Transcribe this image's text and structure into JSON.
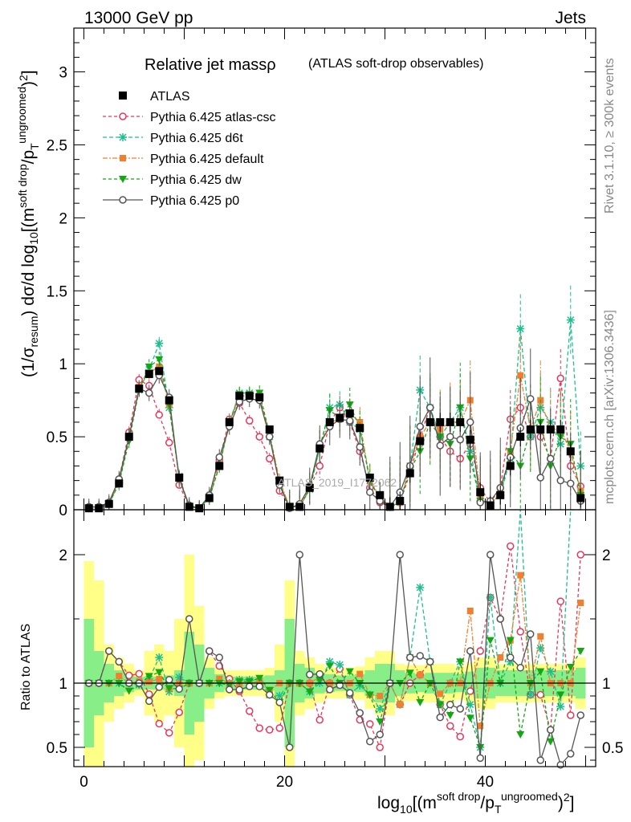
{
  "header": {
    "left": "13000 GeV pp",
    "right": "Jets"
  },
  "side_labels": {
    "rivet": "Rivet 3.1.10, ≥ 300k events",
    "mcplots": "mcplots.cern.ch [arXiv:1306.3436]"
  },
  "watermark": "ATLAS_2019_I1772062",
  "chart_data": {
    "type": "line",
    "title_main": "Relative jet massρ",
    "title_sub": "(ATLAS soft-drop observables)",
    "ylabel_top": "(1/σresum) dσ/d log10[(msoft drop/pTungroomed)2]",
    "ylabel_bottom": "Ratio to ATLAS",
    "xlabel": "log10[(msoft drop/pTungroomed)2]",
    "xlim": [
      -1,
      51
    ],
    "ylim_top": [
      0,
      3.3
    ],
    "ylim_ratio": [
      0.35,
      2.35
    ],
    "x_ticks": [
      "0",
      "20",
      "40"
    ],
    "y_ticks_top": [
      "0",
      "0.5",
      "1",
      "1.5",
      "2",
      "2.5",
      "3"
    ],
    "y_ticks_ratio": [
      "0.5",
      "1",
      "2"
    ],
    "x": [
      0.5,
      1.5,
      2.5,
      3.5,
      4.5,
      5.5,
      6.5,
      7.5,
      8.5,
      9.5,
      10.5,
      11.5,
      12.5,
      13.5,
      14.5,
      15.5,
      16.5,
      17.5,
      18.5,
      19.5,
      20.5,
      21.5,
      22.5,
      23.5,
      24.5,
      25.5,
      26.5,
      27.5,
      28.5,
      29.5,
      30.5,
      31.5,
      32.5,
      33.5,
      34.5,
      35.5,
      36.5,
      37.5,
      38.5,
      39.5,
      40.5,
      41.5,
      42.5,
      43.5,
      44.5,
      45.5,
      46.5,
      47.5,
      48.5,
      49.5
    ],
    "series": [
      {
        "name": "ATLAS",
        "color": "#000000",
        "marker": "square",
        "values": [
          0.01,
          0.01,
          0.04,
          0.18,
          0.5,
          0.83,
          0.93,
          0.95,
          0.75,
          0.22,
          0.02,
          0.01,
          0.08,
          0.3,
          0.6,
          0.78,
          0.78,
          0.77,
          0.55,
          0.2,
          0.02,
          0.02,
          0.15,
          0.42,
          0.6,
          0.63,
          0.66,
          0.56,
          0.22,
          0.1,
          0.02,
          0.06,
          0.25,
          0.47,
          0.6,
          0.6,
          0.6,
          0.6,
          0.48,
          0.12,
          0.03,
          0.1,
          0.3,
          0.5,
          0.55,
          0.55,
          0.55,
          0.55,
          0.4,
          0.08
        ]
      },
      {
        "name": "Pythia 6.425 atlas-csc",
        "color": "#e8365a",
        "marker": "circle-open",
        "dash": "4,3",
        "values": [
          0.01,
          0.02,
          0.05,
          0.21,
          0.53,
          0.89,
          0.85,
          0.65,
          0.46,
          0.17,
          0.02,
          0.01,
          0.1,
          0.34,
          0.62,
          0.73,
          0.61,
          0.5,
          0.35,
          0.13,
          0.02,
          0.02,
          0.15,
          0.3,
          0.6,
          0.7,
          0.6,
          0.4,
          0.15,
          0.05,
          0.02,
          0.05,
          0.25,
          0.5,
          0.7,
          0.5,
          0.4,
          0.35,
          0.45,
          0.15,
          0.05,
          0.15,
          0.62,
          0.7,
          0.5,
          0.5,
          0.35,
          0.9,
          0.3,
          0.16
        ]
      },
      {
        "name": "Pythia 6.425 d6t",
        "color": "#1dbf8f",
        "marker": "star",
        "dash": "5,3",
        "values": [
          0.01,
          0.01,
          0.04,
          0.18,
          0.5,
          0.82,
          0.96,
          1.14,
          0.7,
          0.23,
          0.02,
          0.01,
          0.08,
          0.3,
          0.6,
          0.8,
          0.8,
          0.78,
          0.5,
          0.18,
          0.02,
          0.02,
          0.14,
          0.42,
          0.7,
          0.72,
          0.6,
          0.55,
          0.2,
          0.08,
          0.02,
          0.05,
          0.3,
          0.82,
          0.7,
          0.5,
          0.6,
          0.7,
          0.4,
          0.06,
          0.05,
          0.1,
          0.35,
          1.24,
          0.5,
          0.7,
          0.6,
          0.45,
          1.3,
          0.3
        ]
      },
      {
        "name": "Pythia 6.425 default",
        "color": "#f08030",
        "marker": "square-filled",
        "dash": "6,2,2,2",
        "values": [
          0.01,
          0.01,
          0.04,
          0.19,
          0.5,
          0.84,
          0.94,
          0.98,
          0.72,
          0.22,
          0.02,
          0.01,
          0.08,
          0.31,
          0.6,
          0.78,
          0.78,
          0.78,
          0.52,
          0.2,
          0.02,
          0.02,
          0.15,
          0.44,
          0.6,
          0.62,
          0.66,
          0.6,
          0.2,
          0.09,
          0.02,
          0.05,
          0.3,
          0.5,
          0.6,
          0.55,
          0.6,
          0.6,
          0.75,
          0.08,
          0.03,
          0.12,
          0.4,
          0.92,
          0.55,
          0.75,
          0.55,
          0.55,
          0.4,
          0.13
        ]
      },
      {
        "name": "Pythia 6.425 dw",
        "color": "#11a811",
        "marker": "triangle-down",
        "dash": "4,3",
        "values": [
          0.01,
          0.01,
          0.04,
          0.18,
          0.47,
          0.82,
          0.98,
          1.03,
          0.72,
          0.21,
          0.02,
          0.01,
          0.08,
          0.3,
          0.59,
          0.79,
          0.79,
          0.8,
          0.52,
          0.17,
          0.02,
          0.02,
          0.14,
          0.43,
          0.68,
          0.63,
          0.72,
          0.56,
          0.2,
          0.07,
          0.02,
          0.06,
          0.27,
          0.4,
          0.6,
          0.5,
          0.45,
          0.7,
          0.35,
          0.06,
          0.04,
          0.1,
          0.4,
          0.3,
          0.55,
          0.6,
          0.3,
          0.5,
          0.45,
          0.1
        ]
      },
      {
        "name": "Pythia 6.425 p0",
        "color": "#555555",
        "marker": "circle-open",
        "dash": "",
        "values": [
          0.02,
          0.02,
          0.05,
          0.21,
          0.5,
          0.83,
          0.8,
          0.92,
          0.77,
          0.21,
          0.03,
          0.01,
          0.1,
          0.36,
          0.57,
          0.74,
          0.76,
          0.75,
          0.5,
          0.17,
          0.01,
          0.04,
          0.16,
          0.45,
          0.57,
          0.62,
          0.61,
          0.43,
          0.12,
          0.06,
          0.02,
          0.12,
          0.3,
          0.57,
          0.7,
          0.44,
          0.5,
          0.48,
          0.6,
          0.05,
          0.06,
          0.15,
          0.36,
          0.56,
          0.76,
          0.22,
          0.35,
          0.2,
          0.18,
          0.06
        ]
      }
    ],
    "ratio_band_inner": [
      1.5,
      1.25,
      1.15,
      1.1,
      1.07,
      1.05,
      1.05,
      1.05,
      1.06,
      1.1,
      1.4,
      1.3,
      1.12,
      1.07,
      1.05,
      1.05,
      1.05,
      1.05,
      1.06,
      1.1,
      1.5,
      1.15,
      1.12,
      1.08,
      1.07,
      1.06,
      1.06,
      1.07,
      1.1,
      1.15,
      1.15,
      1.1,
      1.08,
      1.07,
      1.08,
      1.08,
      1.08,
      1.07,
      1.09,
      1.12,
      1.12,
      1.1,
      1.1,
      1.1,
      1.1,
      1.1,
      1.1,
      1.1,
      1.1,
      1.12
    ],
    "ratio_band_outer": [
      1.95,
      1.8,
      1.3,
      1.2,
      1.15,
      1.1,
      1.25,
      1.3,
      1.25,
      1.5,
      2.0,
      1.6,
      1.2,
      1.12,
      1.1,
      1.1,
      1.1,
      1.1,
      1.12,
      1.3,
      1.8,
      1.25,
      1.2,
      1.15,
      1.12,
      1.12,
      1.12,
      1.13,
      1.2,
      1.25,
      1.25,
      1.15,
      1.14,
      1.14,
      1.15,
      1.15,
      1.15,
      1.13,
      1.16,
      1.2,
      1.2,
      1.15,
      1.15,
      1.15,
      1.15,
      1.15,
      1.15,
      1.15,
      1.15,
      1.2
    ]
  }
}
